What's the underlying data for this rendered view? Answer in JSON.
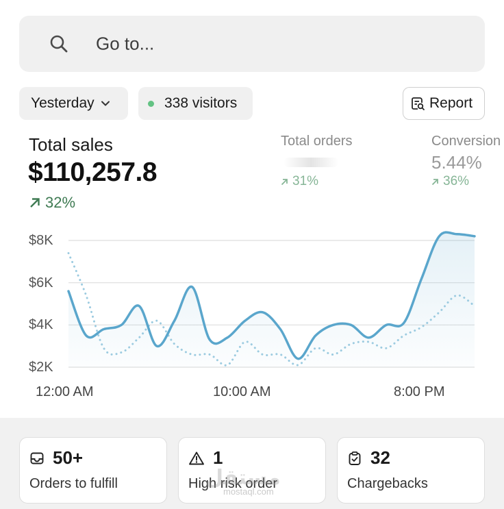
{
  "search": {
    "placeholder": "Go to...",
    "icon": "search-icon"
  },
  "filters": {
    "date_label": "Yesterday",
    "visitors_label": "338 visitors",
    "visitors_dot_color": "#63c283",
    "report_label": "Report"
  },
  "metrics": {
    "total_sales": {
      "label": "Total sales",
      "value": "$110,257.8",
      "change": "32%"
    },
    "total_orders": {
      "label": "Total orders",
      "value": "",
      "change": "31%"
    },
    "conversion": {
      "label": "Conversion",
      "value": "5.44%",
      "change": "36%"
    }
  },
  "colors": {
    "primary_line": "#5aa6cc",
    "comparison_line": "#9ccbe0",
    "positive": "#3e7a52"
  },
  "chart_data": {
    "type": "line",
    "y_ticks": [
      "$8K",
      "$6K",
      "$4K",
      "$2K"
    ],
    "x_ticks": [
      "12:00 AM",
      "10:00 AM",
      "8:00 PM"
    ],
    "ylim": [
      2000,
      8000
    ],
    "x": [
      0,
      1,
      2,
      3,
      4,
      5,
      6,
      7,
      8,
      9,
      10,
      11,
      12,
      13,
      14,
      15,
      16,
      17,
      18,
      19,
      20,
      21,
      22,
      23
    ],
    "series": [
      {
        "values": [
          5600,
          3500,
          3800,
          4000,
          4900,
          3000,
          4200,
          5800,
          3300,
          3400,
          4200,
          4600,
          3800,
          2400,
          3500,
          4000,
          4000,
          3400,
          4000,
          4100,
          6200,
          8200,
          8300,
          8200
        ],
        "style": "solid"
      },
      {
        "values": [
          7400,
          5400,
          2900,
          2700,
          3400,
          4200,
          3100,
          2600,
          2600,
          2100,
          3200,
          2600,
          2600,
          2100,
          2900,
          2600,
          3100,
          3200,
          2900,
          3500,
          3900,
          4600,
          5400,
          4900
        ],
        "style": "dotted"
      }
    ]
  },
  "cards": [
    {
      "value": "50+",
      "label": "Orders to fulfill",
      "icon": "inbox-icon"
    },
    {
      "value": "1",
      "label": "High risk order",
      "icon": "warning-icon"
    },
    {
      "value": "32",
      "label": "Chargebacks",
      "icon": "clipboard-check-icon"
    }
  ],
  "watermark": {
    "text": "مستقل",
    "sub": "mostaql.com"
  }
}
